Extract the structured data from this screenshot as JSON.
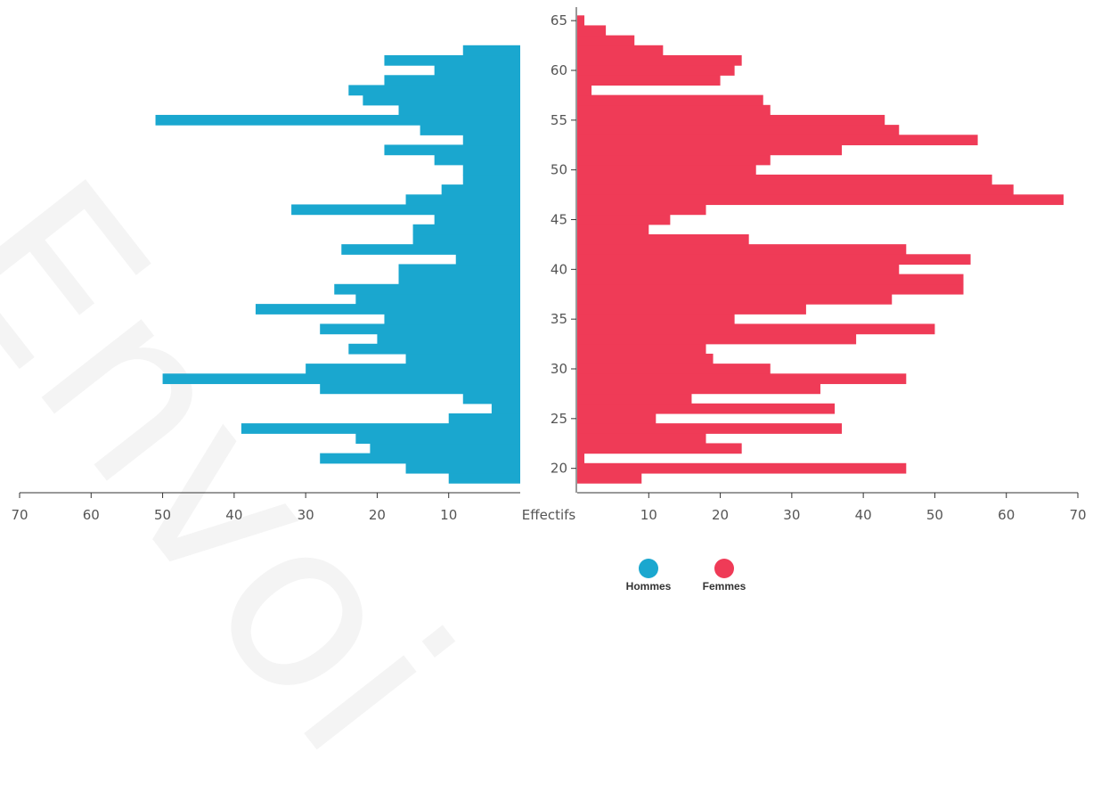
{
  "chart_data": {
    "type": "bar",
    "orientation": "horizontal-pyramid",
    "center_label": "Effectifs",
    "y_axis": {
      "min": 18,
      "max": 66,
      "ticks": [
        20,
        25,
        30,
        35,
        40,
        45,
        50,
        55,
        60,
        65
      ]
    },
    "x_axis": {
      "max": 70,
      "ticks": [
        10,
        20,
        30,
        40,
        50,
        60,
        70
      ]
    },
    "series": [
      {
        "name": "Hommes",
        "color": "#1aa7cf",
        "side": "left",
        "data": [
          {
            "age": 19,
            "value": 10
          },
          {
            "age": 20,
            "value": 16
          },
          {
            "age": 21,
            "value": 28
          },
          {
            "age": 22,
            "value": 21
          },
          {
            "age": 23,
            "value": 23
          },
          {
            "age": 24,
            "value": 39
          },
          {
            "age": 25,
            "value": 10
          },
          {
            "age": 26,
            "value": 4
          },
          {
            "age": 27,
            "value": 8
          },
          {
            "age": 28,
            "value": 28
          },
          {
            "age": 29,
            "value": 50
          },
          {
            "age": 30,
            "value": 30
          },
          {
            "age": 31,
            "value": 16
          },
          {
            "age": 32,
            "value": 24
          },
          {
            "age": 33,
            "value": 20
          },
          {
            "age": 34,
            "value": 28
          },
          {
            "age": 35,
            "value": 19
          },
          {
            "age": 36,
            "value": 37
          },
          {
            "age": 37,
            "value": 23
          },
          {
            "age": 38,
            "value": 26
          },
          {
            "age": 39,
            "value": 17
          },
          {
            "age": 40,
            "value": 17
          },
          {
            "age": 41,
            "value": 9
          },
          {
            "age": 42,
            "value": 25
          },
          {
            "age": 43,
            "value": 15
          },
          {
            "age": 44,
            "value": 15
          },
          {
            "age": 45,
            "value": 12
          },
          {
            "age": 46,
            "value": 32
          },
          {
            "age": 47,
            "value": 16
          },
          {
            "age": 48,
            "value": 11
          },
          {
            "age": 49,
            "value": 8
          },
          {
            "age": 50,
            "value": 8
          },
          {
            "age": 51,
            "value": 12
          },
          {
            "age": 52,
            "value": 19
          },
          {
            "age": 53,
            "value": 8
          },
          {
            "age": 54,
            "value": 14
          },
          {
            "age": 55,
            "value": 51
          },
          {
            "age": 56,
            "value": 17
          },
          {
            "age": 57,
            "value": 22
          },
          {
            "age": 58,
            "value": 24
          },
          {
            "age": 59,
            "value": 19
          },
          {
            "age": 60,
            "value": 12
          },
          {
            "age": 61,
            "value": 19
          },
          {
            "age": 62,
            "value": 8
          }
        ]
      },
      {
        "name": "Femmes",
        "color": "#ef3b57",
        "side": "right",
        "data": [
          {
            "age": 19,
            "value": 9
          },
          {
            "age": 20,
            "value": 46
          },
          {
            "age": 21,
            "value": 1
          },
          {
            "age": 22,
            "value": 23
          },
          {
            "age": 23,
            "value": 18
          },
          {
            "age": 24,
            "value": 37
          },
          {
            "age": 25,
            "value": 11
          },
          {
            "age": 26,
            "value": 36
          },
          {
            "age": 27,
            "value": 16
          },
          {
            "age": 28,
            "value": 34
          },
          {
            "age": 29,
            "value": 46
          },
          {
            "age": 30,
            "value": 27
          },
          {
            "age": 31,
            "value": 19
          },
          {
            "age": 32,
            "value": 18
          },
          {
            "age": 33,
            "value": 39
          },
          {
            "age": 34,
            "value": 50
          },
          {
            "age": 35,
            "value": 22
          },
          {
            "age": 36,
            "value": 32
          },
          {
            "age": 37,
            "value": 44
          },
          {
            "age": 38,
            "value": 54
          },
          {
            "age": 39,
            "value": 54
          },
          {
            "age": 40,
            "value": 45
          },
          {
            "age": 41,
            "value": 55
          },
          {
            "age": 42,
            "value": 46
          },
          {
            "age": 43,
            "value": 24
          },
          {
            "age": 44,
            "value": 10
          },
          {
            "age": 45,
            "value": 13
          },
          {
            "age": 46,
            "value": 18
          },
          {
            "age": 47,
            "value": 68
          },
          {
            "age": 48,
            "value": 61
          },
          {
            "age": 49,
            "value": 58
          },
          {
            "age": 50,
            "value": 25
          },
          {
            "age": 51,
            "value": 27
          },
          {
            "age": 52,
            "value": 37
          },
          {
            "age": 53,
            "value": 56
          },
          {
            "age": 54,
            "value": 45
          },
          {
            "age": 55,
            "value": 43
          },
          {
            "age": 56,
            "value": 27
          },
          {
            "age": 57,
            "value": 26
          },
          {
            "age": 58,
            "value": 2
          },
          {
            "age": 59,
            "value": 20
          },
          {
            "age": 60,
            "value": 22
          },
          {
            "age": 61,
            "value": 23
          },
          {
            "age": 62,
            "value": 12
          },
          {
            "age": 63,
            "value": 8
          },
          {
            "age": 64,
            "value": 4
          },
          {
            "age": 65,
            "value": 1
          }
        ]
      }
    ]
  },
  "watermark": "Envoi"
}
